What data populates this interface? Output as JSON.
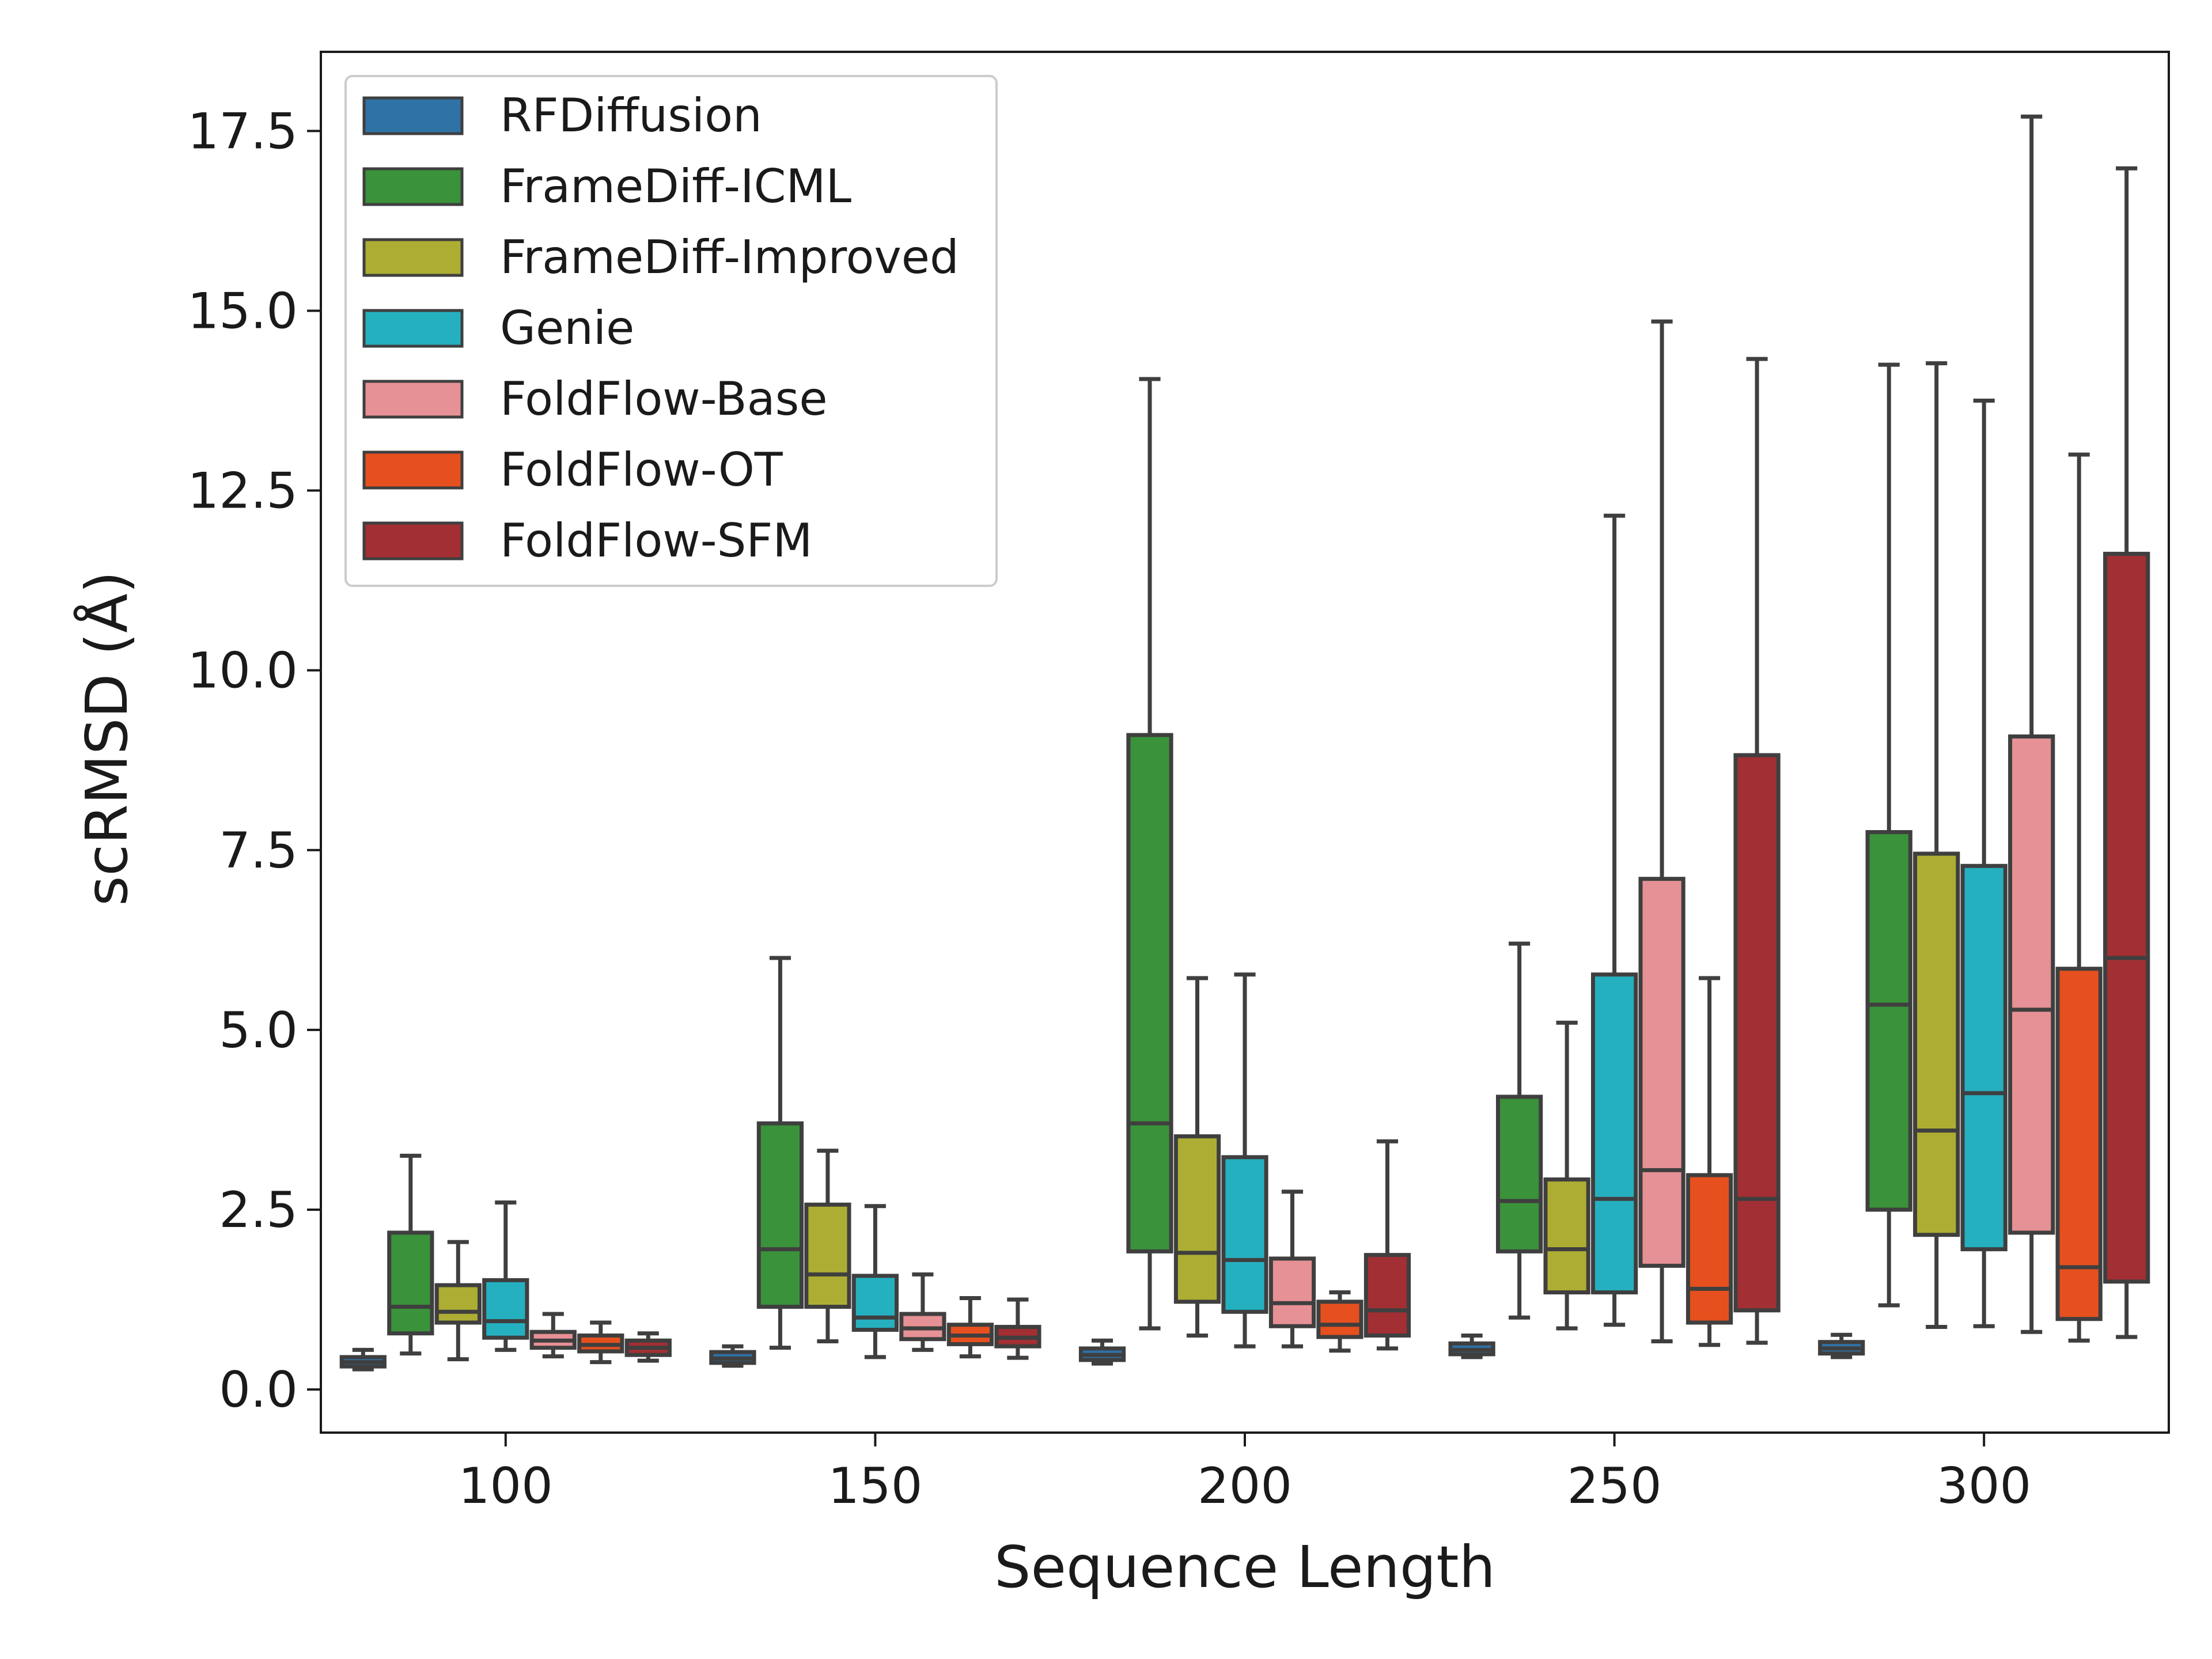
{
  "chart_data": {
    "type": "box",
    "title": "",
    "xlabel": "Sequence Length",
    "ylabel": "scRMSD (Å)",
    "ylim": [
      -0.6,
      18.6
    ],
    "yticks": [
      0.0,
      2.5,
      5.0,
      7.5,
      10.0,
      12.5,
      15.0,
      17.5
    ],
    "ytick_labels": [
      "0.0",
      "2.5",
      "5.0",
      "7.5",
      "10.0",
      "12.5",
      "15.0",
      "17.5"
    ],
    "categories": [
      "100",
      "150",
      "200",
      "250",
      "300"
    ],
    "legend_position": "top-left",
    "series": [
      {
        "name": "RFDiffusion",
        "color": "#2f72a6",
        "boxes": [
          {
            "min": 0.28,
            "q1": 0.32,
            "median": 0.38,
            "q3": 0.45,
            "max": 0.55
          },
          {
            "min": 0.33,
            "q1": 0.37,
            "median": 0.43,
            "q3": 0.52,
            "max": 0.6
          },
          {
            "min": 0.36,
            "q1": 0.41,
            "median": 0.48,
            "q3": 0.57,
            "max": 0.68
          },
          {
            "min": 0.45,
            "q1": 0.49,
            "median": 0.55,
            "q3": 0.64,
            "max": 0.75
          },
          {
            "min": 0.45,
            "q1": 0.5,
            "median": 0.57,
            "q3": 0.66,
            "max": 0.76
          }
        ]
      },
      {
        "name": "FrameDiff-ICML",
        "color": "#3a923a",
        "boxes": [
          {
            "min": 0.5,
            "q1": 0.78,
            "median": 1.15,
            "q3": 2.18,
            "max": 3.25
          },
          {
            "min": 0.58,
            "q1": 1.15,
            "median": 1.95,
            "q3": 3.7,
            "max": 6.0
          },
          {
            "min": 0.85,
            "q1": 1.92,
            "median": 3.7,
            "q3": 9.1,
            "max": 14.05
          },
          {
            "min": 1.0,
            "q1": 1.92,
            "median": 2.62,
            "q3": 4.07,
            "max": 6.2
          },
          {
            "min": 1.17,
            "q1": 2.5,
            "median": 5.35,
            "q3": 7.75,
            "max": 14.25
          }
        ]
      },
      {
        "name": "FrameDiff-Improved",
        "color": "#adad33",
        "boxes": [
          {
            "min": 0.42,
            "q1": 0.93,
            "median": 1.08,
            "q3": 1.45,
            "max": 2.05
          },
          {
            "min": 0.67,
            "q1": 1.15,
            "median": 1.6,
            "q3": 2.57,
            "max": 3.32
          },
          {
            "min": 0.75,
            "q1": 1.22,
            "median": 1.9,
            "q3": 3.52,
            "max": 5.72
          },
          {
            "min": 0.85,
            "q1": 1.35,
            "median": 1.95,
            "q3": 2.92,
            "max": 5.1
          },
          {
            "min": 0.87,
            "q1": 2.15,
            "median": 3.6,
            "q3": 7.45,
            "max": 14.27
          }
        ]
      },
      {
        "name": "Genie",
        "color": "#25b0c0",
        "boxes": [
          {
            "min": 0.55,
            "q1": 0.72,
            "median": 0.95,
            "q3": 1.52,
            "max": 2.6
          },
          {
            "min": 0.45,
            "q1": 0.83,
            "median": 1.0,
            "q3": 1.58,
            "max": 2.55
          },
          {
            "min": 0.6,
            "q1": 1.08,
            "median": 1.8,
            "q3": 3.23,
            "max": 5.77
          },
          {
            "min": 0.9,
            "q1": 1.35,
            "median": 2.65,
            "q3": 5.77,
            "max": 12.15
          },
          {
            "min": 0.88,
            "q1": 1.95,
            "median": 4.12,
            "q3": 7.28,
            "max": 13.75
          }
        ]
      },
      {
        "name": "FoldFlow-Base",
        "color": "#e69195",
        "boxes": [
          {
            "min": 0.46,
            "q1": 0.58,
            "median": 0.68,
            "q3": 0.8,
            "max": 1.05
          },
          {
            "min": 0.55,
            "q1": 0.7,
            "median": 0.85,
            "q3": 1.05,
            "max": 1.6
          },
          {
            "min": 0.6,
            "q1": 0.88,
            "median": 1.2,
            "q3": 1.82,
            "max": 2.75
          },
          {
            "min": 0.67,
            "q1": 1.72,
            "median": 3.05,
            "q3": 7.1,
            "max": 14.85
          },
          {
            "min": 0.8,
            "q1": 2.18,
            "median": 5.28,
            "q3": 9.08,
            "max": 17.7
          }
        ]
      },
      {
        "name": "FoldFlow-OT",
        "color": "#e6501e",
        "boxes": [
          {
            "min": 0.38,
            "q1": 0.53,
            "median": 0.62,
            "q3": 0.75,
            "max": 0.93
          },
          {
            "min": 0.46,
            "q1": 0.63,
            "median": 0.75,
            "q3": 0.9,
            "max": 1.27
          },
          {
            "min": 0.54,
            "q1": 0.73,
            "median": 0.9,
            "q3": 1.22,
            "max": 1.35
          },
          {
            "min": 0.62,
            "q1": 0.93,
            "median": 1.4,
            "q3": 2.98,
            "max": 5.72
          },
          {
            "min": 0.68,
            "q1": 0.98,
            "median": 1.7,
            "q3": 5.85,
            "max": 13.0
          }
        ]
      },
      {
        "name": "FoldFlow-SFM",
        "color": "#a12f33",
        "boxes": [
          {
            "min": 0.4,
            "q1": 0.48,
            "median": 0.58,
            "q3": 0.68,
            "max": 0.78
          },
          {
            "min": 0.44,
            "q1": 0.6,
            "median": 0.72,
            "q3": 0.87,
            "max": 1.25
          },
          {
            "min": 0.57,
            "q1": 0.75,
            "median": 1.1,
            "q3": 1.87,
            "max": 3.45
          },
          {
            "min": 0.65,
            "q1": 1.1,
            "median": 2.65,
            "q3": 8.82,
            "max": 14.33
          },
          {
            "min": 0.73,
            "q1": 1.5,
            "median": 6.0,
            "q3": 11.62,
            "max": 16.98
          }
        ]
      }
    ]
  }
}
